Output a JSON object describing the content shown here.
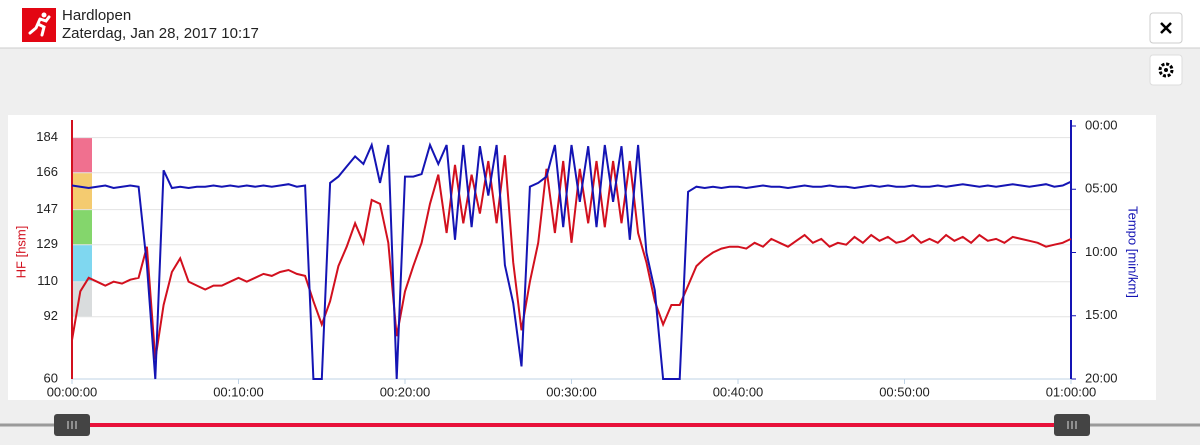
{
  "header": {
    "title": "Hardlopen",
    "subtitle": "Zaterdag, Jan 28, 2017 10:17"
  },
  "chart_data": {
    "type": "line",
    "x": [
      0,
      0.5,
      1,
      1.5,
      2,
      2.5,
      3,
      3.5,
      4,
      4.5,
      5,
      5.5,
      6,
      6.5,
      7,
      7.5,
      8,
      8.5,
      9,
      9.5,
      10,
      10.5,
      11,
      11.5,
      12,
      12.5,
      13,
      13.5,
      14,
      14.5,
      15,
      15.5,
      16,
      16.5,
      17,
      17.5,
      18,
      18.5,
      19,
      19.5,
      20,
      20.5,
      21,
      21.5,
      22,
      22.5,
      23,
      23.5,
      24,
      24.5,
      25,
      25.5,
      26,
      26.5,
      27,
      27.5,
      28,
      28.5,
      29,
      29.5,
      30,
      30.5,
      31,
      31.5,
      32,
      32.5,
      33,
      33.5,
      34,
      34.5,
      35,
      35.5,
      36,
      36.5,
      37,
      37.5,
      38,
      38.5,
      39,
      39.5,
      40,
      40.5,
      41,
      41.5,
      42,
      42.5,
      43,
      43.5,
      44,
      44.5,
      45,
      45.5,
      46,
      46.5,
      47,
      47.5,
      48,
      48.5,
      49,
      49.5,
      50,
      50.5,
      51,
      51.5,
      52,
      52.5,
      53,
      53.5,
      54,
      54.5,
      55,
      55.5,
      56,
      56.5,
      57,
      57.5,
      58,
      58.5,
      59,
      59.5,
      60
    ],
    "xlim": [
      0,
      60
    ],
    "xticks": [
      {
        "value": 0,
        "label": "00:00:00"
      },
      {
        "value": 10,
        "label": "00:10:00"
      },
      {
        "value": 20,
        "label": "00:20:00"
      },
      {
        "value": 30,
        "label": "00:30:00"
      },
      {
        "value": 40,
        "label": "00:40:00"
      },
      {
        "value": 50,
        "label": "00:50:00"
      },
      {
        "value": 60,
        "label": "01:00:00"
      }
    ],
    "ylabel": "HF [hsm]",
    "ylim": [
      60,
      190
    ],
    "yticks": [
      60,
      92,
      110,
      129,
      147,
      166,
      184
    ],
    "y2label": "Tempo [min/km]",
    "y2lim": [
      20,
      0
    ],
    "y2ticks": [
      {
        "value": 0,
        "label": "00:00"
      },
      {
        "value": 5,
        "label": "05:00"
      },
      {
        "value": 10,
        "label": "10:00"
      },
      {
        "value": 15,
        "label": "15:00"
      },
      {
        "value": 20,
        "label": "20:00"
      }
    ],
    "zone_colors": [
      "#d9dcdd",
      "#7fd7f0",
      "#84d66c",
      "#f4cb70",
      "#f0708f"
    ],
    "grid": true,
    "series": [
      {
        "name": "HF",
        "color": "#d2101e",
        "values": [
          80,
          105,
          112,
          110,
          108,
          110,
          109,
          111,
          112,
          128,
          70,
          98,
          115,
          122,
          110,
          108,
          106,
          108,
          108,
          110,
          112,
          110,
          112,
          114,
          113,
          115,
          116,
          114,
          113,
          100,
          88,
          100,
          118,
          128,
          140,
          130,
          152,
          150,
          130,
          82,
          105,
          118,
          130,
          150,
          165,
          135,
          170,
          140,
          165,
          145,
          172,
          140,
          175,
          120,
          85,
          110,
          130,
          168,
          135,
          172,
          130,
          168,
          140,
          172,
          138,
          172,
          140,
          172,
          135,
          120,
          100,
          88,
          98,
          98,
          108,
          118,
          122,
          125,
          127,
          128,
          128,
          127,
          130,
          128,
          132,
          130,
          128,
          131,
          134,
          130,
          132,
          128,
          130,
          129,
          133,
          130,
          134,
          131,
          133,
          130,
          131,
          134,
          130,
          132,
          130,
          134,
          131,
          133,
          130,
          134,
          131,
          132,
          130,
          133,
          132,
          131,
          130,
          128,
          129,
          130,
          132
        ]
      },
      {
        "name": "Tempo",
        "color": "#1414b4",
        "axis": "y2",
        "values": [
          4.7,
          4.8,
          4.9,
          4.8,
          4.7,
          4.9,
          4.8,
          4.7,
          4.8,
          11,
          20,
          3.5,
          4.9,
          4.8,
          4.9,
          4.8,
          4.8,
          4.7,
          4.8,
          4.7,
          4.8,
          4.7,
          4.8,
          4.7,
          4.8,
          4.7,
          4.6,
          4.8,
          4.7,
          20,
          20,
          4.5,
          4.0,
          3.2,
          2.4,
          3.0,
          1.5,
          4.5,
          1.5,
          20,
          4.0,
          4.0,
          3.8,
          1.5,
          3.0,
          1.5,
          9,
          1.5,
          8,
          1.6,
          5.5,
          1.5,
          11,
          14,
          19,
          4.8,
          4.5,
          4.0,
          1.5,
          8,
          1.5,
          6,
          1.6,
          8,
          1.5,
          6,
          1.6,
          9,
          1.5,
          10,
          13,
          20,
          20,
          20,
          5.2,
          4.8,
          4.9,
          4.8,
          4.9,
          4.8,
          4.8,
          4.9,
          4.8,
          4.7,
          4.8,
          4.8,
          4.9,
          4.8,
          4.7,
          4.8,
          4.8,
          4.7,
          4.8,
          4.8,
          4.9,
          4.8,
          4.7,
          4.8,
          4.7,
          4.8,
          4.8,
          4.7,
          4.8,
          4.8,
          4.7,
          4.8,
          4.7,
          4.6,
          4.7,
          4.8,
          4.7,
          4.8,
          4.7,
          4.6,
          4.7,
          4.8,
          4.7,
          4.6,
          4.8,
          4.7,
          4.4
        ]
      }
    ]
  }
}
